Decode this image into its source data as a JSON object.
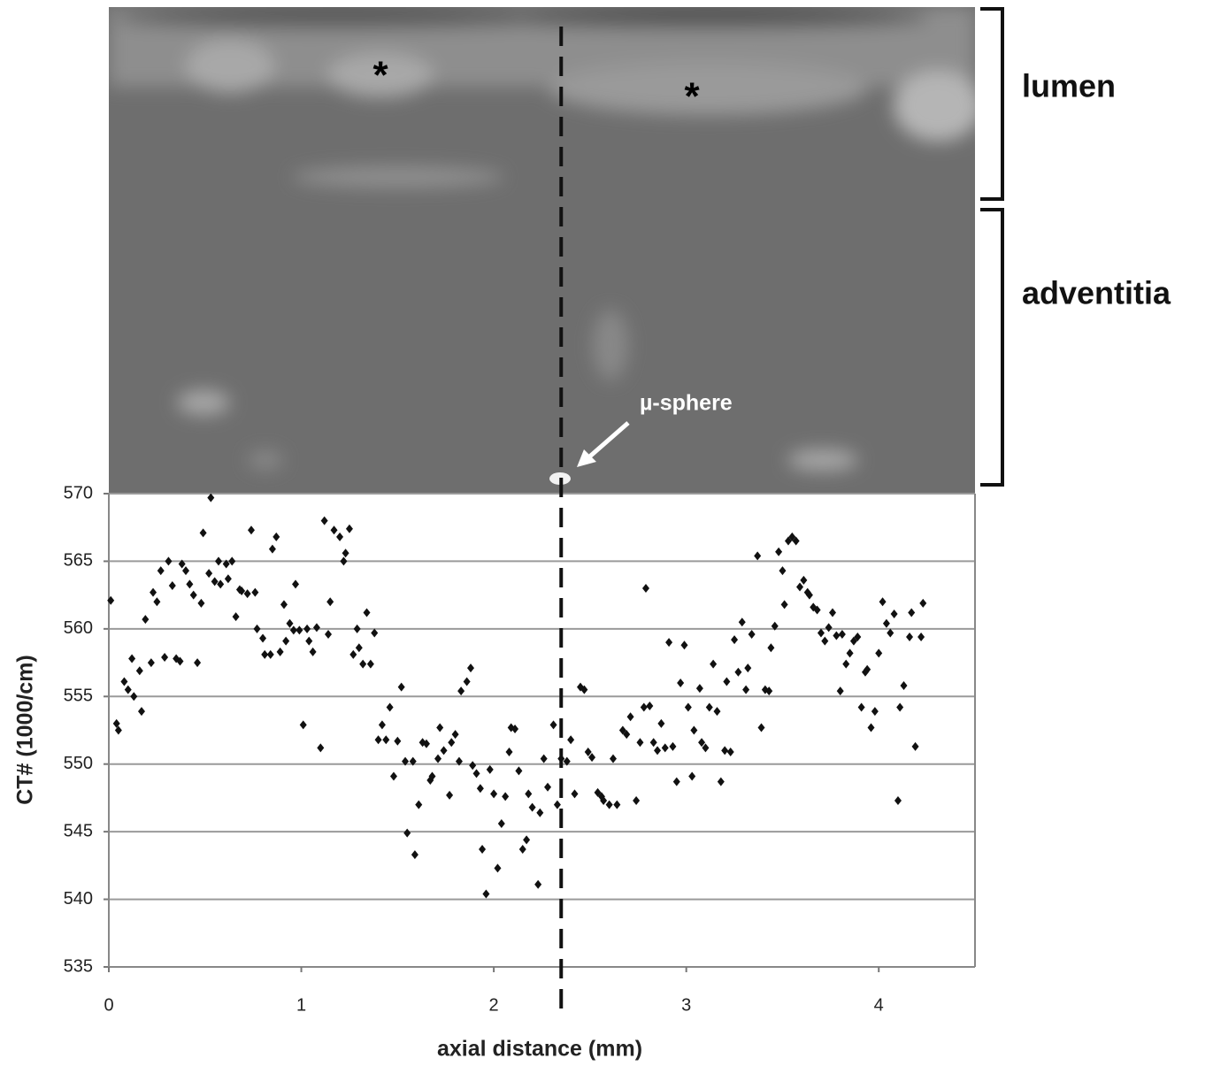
{
  "chart_data": {
    "type": "scatter",
    "xlabel": "axial distance (mm)",
    "ylabel": "CT# (1000/cm)",
    "annotations": {
      "lumen": "lumen",
      "adventitia": "adventitia",
      "sphere": "µ-sphere",
      "star_1": "*",
      "star_2": "*"
    },
    "xlim": [
      0,
      4.5
    ],
    "xticks": [
      0,
      1,
      2,
      3,
      4
    ],
    "ylim": [
      535,
      570
    ],
    "yticks": [
      535,
      540,
      545,
      550,
      555,
      560,
      565,
      570
    ],
    "grid": true,
    "vline_x": 2.35,
    "x": [
      0.01,
      0.04,
      0.05,
      0.08,
      0.1,
      0.12,
      0.13,
      0.16,
      0.17,
      0.19,
      0.22,
      0.23,
      0.25,
      0.27,
      0.29,
      0.31,
      0.33,
      0.35,
      0.37,
      0.38,
      0.4,
      0.42,
      0.44,
      0.46,
      0.48,
      0.49,
      0.52,
      0.53,
      0.55,
      0.57,
      0.58,
      0.61,
      0.62,
      0.64,
      0.66,
      0.68,
      0.69,
      0.72,
      0.74,
      0.76,
      0.77,
      0.8,
      0.81,
      0.84,
      0.85,
      0.87,
      0.89,
      0.91,
      0.92,
      0.94,
      0.96,
      0.97,
      0.99,
      1.01,
      1.03,
      1.04,
      1.06,
      1.08,
      1.1,
      1.12,
      1.14,
      1.15,
      1.17,
      1.2,
      1.22,
      1.23,
      1.25,
      1.27,
      1.29,
      1.3,
      1.32,
      1.34,
      1.36,
      1.38,
      1.4,
      1.42,
      1.44,
      1.46,
      1.48,
      1.5,
      1.52,
      1.54,
      1.55,
      1.58,
      1.59,
      1.61,
      1.63,
      1.65,
      1.67,
      1.68,
      1.71,
      1.72,
      1.74,
      1.77,
      1.78,
      1.8,
      1.82,
      1.83,
      1.86,
      1.88,
      1.89,
      1.91,
      1.93,
      1.94,
      1.96,
      1.98,
      2.0,
      2.02,
      2.04,
      2.06,
      2.08,
      2.09,
      2.11,
      2.13,
      2.15,
      2.17,
      2.18,
      2.2,
      2.23,
      2.24,
      2.26,
      2.28,
      2.31,
      2.33,
      2.35,
      2.38,
      2.4,
      2.42,
      2.45,
      2.47,
      2.49,
      2.51,
      2.54,
      2.56,
      2.57,
      2.6,
      2.62,
      2.64,
      2.67,
      2.69,
      2.71,
      2.74,
      2.76,
      2.78,
      2.79,
      2.81,
      2.83,
      2.85,
      2.87,
      2.89,
      2.91,
      2.93,
      2.95,
      2.97,
      2.99,
      3.01,
      3.03,
      3.04,
      3.07,
      3.08,
      3.1,
      3.12,
      3.14,
      3.16,
      3.18,
      3.2,
      3.21,
      3.23,
      3.25,
      3.27,
      3.29,
      3.31,
      3.32,
      3.34,
      3.37,
      3.39,
      3.41,
      3.43,
      3.44,
      3.46,
      3.48,
      3.5,
      3.51,
      3.53,
      3.55,
      3.57,
      3.59,
      3.61,
      3.63,
      3.64,
      3.66,
      3.68,
      3.7,
      3.72,
      3.74,
      3.76,
      3.78,
      3.8,
      3.81,
      3.83,
      3.85,
      3.87,
      3.89,
      3.91,
      3.93,
      3.94,
      3.96,
      3.98,
      4.0,
      4.02,
      4.04,
      4.06,
      4.08,
      4.1,
      4.11,
      4.13,
      4.16,
      4.17,
      4.19,
      4.22,
      4.23
    ],
    "series": [
      {
        "color": "#111111",
        "values": [
          562.1,
          553.0,
          552.5,
          556.1,
          555.5,
          557.8,
          555.0,
          556.9,
          553.9,
          560.7,
          557.5,
          562.7,
          562.0,
          564.3,
          557.9,
          565.0,
          563.2,
          557.8,
          557.6,
          564.8,
          564.3,
          563.3,
          562.5,
          557.5,
          561.9,
          567.1,
          564.1,
          569.7,
          563.5,
          565.0,
          563.3,
          564.8,
          563.7,
          565.0,
          560.9,
          562.9,
          562.8,
          562.6,
          567.3,
          562.7,
          560.0,
          559.3,
          558.1,
          558.1,
          565.9,
          566.8,
          558.3,
          561.8,
          559.1,
          560.4,
          559.9,
          563.3,
          559.9,
          552.9,
          560.0,
          559.1,
          558.3,
          560.1,
          551.2,
          568.0,
          559.6,
          562.0,
          567.3,
          566.8,
          565.0,
          565.6,
          567.4,
          558.1,
          560.0,
          558.6,
          557.4,
          561.2,
          557.4,
          559.7,
          551.8,
          552.9,
          551.8,
          554.2,
          549.1,
          551.7,
          555.7,
          550.2,
          544.9,
          550.2,
          543.3,
          547.0,
          551.6,
          551.5,
          548.8,
          549.1,
          550.4,
          552.7,
          551.0,
          547.7,
          551.6,
          552.2,
          550.2,
          555.4,
          556.1,
          557.1,
          549.9,
          549.3,
          548.2,
          543.7,
          540.4,
          549.6,
          547.8,
          542.3,
          545.6,
          547.6,
          550.9,
          552.7,
          552.6,
          549.5,
          543.7,
          544.4,
          547.8,
          546.8,
          541.1,
          546.4,
          550.4,
          548.3,
          552.9,
          547.0,
          550.4,
          550.2,
          551.8,
          547.8,
          555.7,
          555.5,
          550.9,
          550.5,
          547.9,
          547.6,
          547.3,
          547.0,
          550.4,
          547.0,
          552.5,
          552.2,
          553.5,
          547.3,
          551.6,
          554.2,
          563.0,
          554.3,
          551.6,
          551.0,
          553.0,
          551.2,
          559.0,
          551.3,
          548.7,
          556.0,
          558.8,
          554.2,
          549.1,
          552.5,
          555.6,
          551.6,
          551.2,
          554.2,
          557.4,
          553.9,
          548.7,
          551.0,
          556.1,
          550.9,
          559.2,
          556.8,
          560.5,
          555.5,
          557.1,
          559.6,
          565.4,
          552.7,
          555.5,
          555.4,
          558.6,
          560.2,
          565.7,
          564.3,
          561.8,
          566.5,
          566.8,
          566.5,
          563.1,
          563.6,
          562.7,
          562.5,
          561.6,
          561.4,
          559.7,
          559.1,
          560.1,
          561.2,
          559.5,
          555.4,
          559.6,
          557.4,
          558.2,
          559.1,
          559.4,
          554.2,
          556.8,
          557.0,
          552.7,
          553.9,
          558.2,
          562.0,
          560.4,
          559.7,
          561.1,
          547.3,
          554.2,
          555.8,
          559.4,
          561.2,
          551.3,
          559.4,
          561.9
        ]
      }
    ]
  }
}
